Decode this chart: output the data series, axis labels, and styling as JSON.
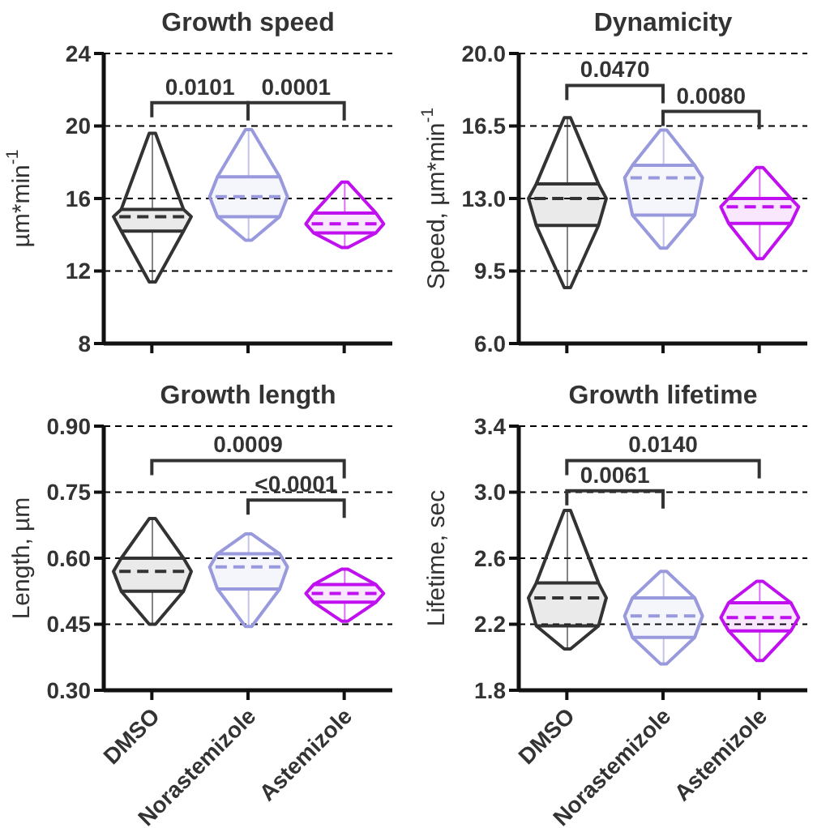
{
  "chart_data": [
    {
      "type": "box",
      "title": "Growth speed",
      "ylabel": "µm*min$^{-1}$",
      "categories": [
        null,
        null,
        null
      ],
      "colors": [
        "#333333",
        "#9999dd",
        "#c010f0"
      ],
      "boxes": [
        {
          "low": 11.4,
          "q1": 14.2,
          "median": 15.0,
          "q3": 15.4,
          "high": 19.6
        },
        {
          "low": 13.7,
          "q1": 15.0,
          "median": 16.1,
          "q3": 17.2,
          "high": 19.8
        },
        {
          "low": 13.3,
          "q1": 14.1,
          "median": 14.6,
          "q3": 15.2,
          "high": 16.9
        }
      ],
      "ylim": [
        8,
        24
      ],
      "yticks": [
        8,
        12,
        16,
        20,
        24
      ],
      "grid": "y",
      "tick_labels": "y",
      "annotations": [
        "0.0101",
        "0.0001"
      ]
    },
    {
      "type": "box",
      "title": "Dynamicity",
      "ylabel": "Speed, µm*min$^{-1}$",
      "categories": [
        null,
        null,
        null
      ],
      "colors": [
        "#333333",
        "#9999dd",
        "#c010f0"
      ],
      "boxes": [
        {
          "low": 8.7,
          "q1": 11.7,
          "median": 13.0,
          "q3": 13.7,
          "high": 16.9
        },
        {
          "low": 10.6,
          "q1": 12.2,
          "median": 14.0,
          "q3": 14.6,
          "high": 16.3
        },
        {
          "low": 10.1,
          "q1": 11.8,
          "median": 12.6,
          "q3": 13.0,
          "high": 14.5
        }
      ],
      "ylim": [
        6,
        20
      ],
      "yticks": [
        {
          "value": 6,
          "label": "6.0"
        },
        9.5,
        {
          "value": 13,
          "label": "13.0"
        },
        16.5,
        {
          "value": 20,
          "label": "20.0"
        }
      ],
      "grid": "y",
      "tick_labels": "y",
      "annotations": [
        "0.0470",
        "0.0080"
      ]
    },
    {
      "type": "box",
      "title": "Growth length",
      "ylabel": "Length, µm",
      "categories": [
        "DMSO",
        "Norastemizole",
        "Astemizole"
      ],
      "colors": [
        "#333333",
        "#9999dd",
        "#c010f0"
      ],
      "boxes": [
        {
          "low": 0.45,
          "q1": 0.525,
          "median": 0.57,
          "q3": 0.6,
          "high": 0.69
        },
        {
          "low": 0.445,
          "q1": 0.53,
          "median": 0.58,
          "q3": 0.61,
          "high": 0.655
        },
        {
          "low": 0.457,
          "q1": 0.5,
          "median": 0.52,
          "q3": 0.54,
          "high": 0.575
        }
      ],
      "ylim": [
        0.3,
        0.9
      ],
      "yticks": [
        {
          "value": 0.3,
          "label": "0.30"
        },
        0.45,
        {
          "value": 0.6,
          "label": "0.60"
        },
        0.75,
        {
          "value": 0.9,
          "label": "0.90"
        }
      ],
      "grid": "y",
      "annotations": [
        "0.0009",
        "<0.0001"
      ]
    },
    {
      "type": "box",
      "title": "Growth lifetime",
      "ylabel": "Lifetime, sec",
      "categories": [
        "DMSO",
        "Norastemizole",
        "Astemizole"
      ],
      "colors": [
        "#333333",
        "#9999dd",
        "#c010f0"
      ],
      "boxes": [
        {
          "low": 2.05,
          "q1": 2.19,
          "median": 2.36,
          "q3": 2.45,
          "high": 2.89
        },
        {
          "low": 1.96,
          "q1": 2.12,
          "median": 2.25,
          "q3": 2.36,
          "high": 2.52
        },
        {
          "low": 1.98,
          "q1": 2.16,
          "median": 2.24,
          "q3": 2.33,
          "high": 2.46
        }
      ],
      "ylim": [
        1.8,
        3.4
      ],
      "yticks": [
        1.8,
        2.2,
        2.6,
        {
          "value": 3,
          "label": "3.0"
        },
        3.4
      ],
      "grid": "y",
      "annotations": [
        "0.0140",
        "0.0061"
      ]
    }
  ]
}
